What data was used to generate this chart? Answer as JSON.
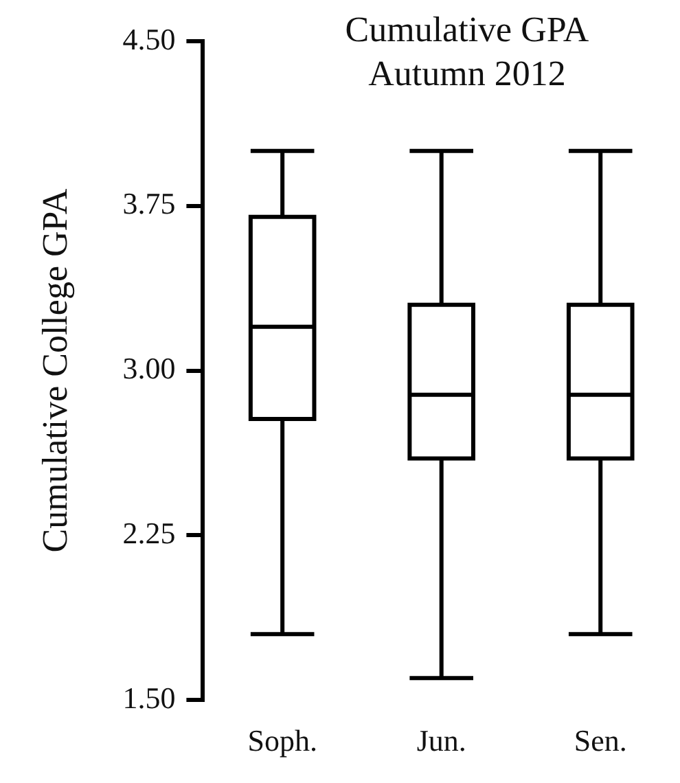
{
  "chart_data": {
    "type": "box",
    "title": "Cumulative GPA Autumn 2012",
    "ylabel": "Cumulative College GPA",
    "categories": [
      "Soph.",
      "Jun.",
      "Sen."
    ],
    "boxes": [
      {
        "low": 1.8,
        "q1": 2.78,
        "median": 3.2,
        "q3": 3.7,
        "high": 4.0
      },
      {
        "low": 1.6,
        "q1": 2.6,
        "median": 2.89,
        "q3": 3.3,
        "high": 4.0
      },
      {
        "low": 1.8,
        "q1": 2.6,
        "median": 2.89,
        "q3": 3.3,
        "high": 4.0
      }
    ],
    "ylim": [
      1.5,
      4.5
    ],
    "yticks": [
      {
        "value": 1.5,
        "label": "1.50"
      },
      {
        "value": 2.25,
        "label": "2.25"
      },
      {
        "value": 3,
        "label": "3.00"
      },
      {
        "value": 3.75,
        "label": "3.75"
      },
      {
        "value": 4.5,
        "label": "4.50"
      }
    ]
  }
}
